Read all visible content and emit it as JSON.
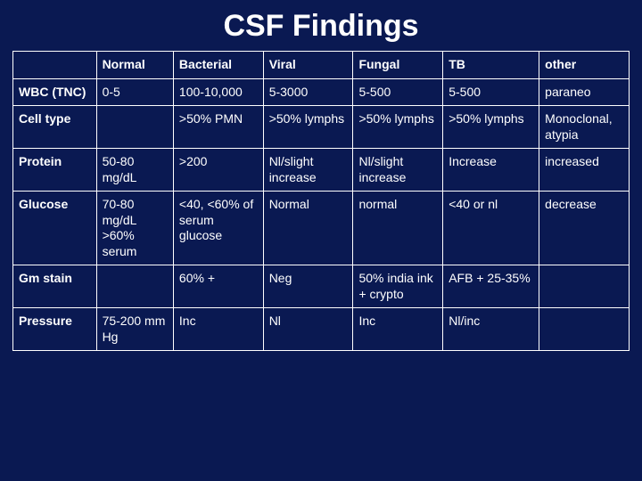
{
  "title": "CSF Findings",
  "columns": [
    "",
    "Normal",
    "Bacterial",
    "Viral",
    "Fungal",
    "TB",
    "other"
  ],
  "rows": [
    {
      "head": "WBC (TNC)",
      "cells": [
        "0-5",
        "100-10,000",
        "5-3000",
        "5-500",
        "5-500",
        "paraneo"
      ]
    },
    {
      "head": "Cell type",
      "cells": [
        "",
        ">50% PMN",
        ">50% lymphs",
        ">50% lymphs",
        ">50% lymphs",
        "Monoclonal, atypia"
      ]
    },
    {
      "head": "Protein",
      "cells": [
        "50-80 mg/dL",
        ">200",
        "Nl/slight increase",
        "Nl/slight increase",
        "Increase",
        "increased"
      ]
    },
    {
      "head": "Glucose",
      "cells": [
        "70-80 mg/dL >60% serum",
        "<40, <60% of serum glucose",
        "Normal",
        "normal",
        "<40 or nl",
        "decrease"
      ]
    },
    {
      "head": "Gm stain",
      "cells": [
        "",
        "60% +",
        "Neg",
        "50% india ink + crypto",
        "AFB + 25-35%",
        ""
      ]
    },
    {
      "head": "Pressure",
      "cells": [
        "75-200 mm Hg",
        "Inc",
        "Nl",
        "Inc",
        "Nl/inc",
        ""
      ]
    }
  ],
  "style": {
    "background_color": "#0a1952",
    "title_color": "#ffffff",
    "title_fontsize": 34,
    "cell_fontsize": 14,
    "border_color": "#ffffff",
    "text_color": "#ffffff",
    "col_widths_pct": [
      13,
      12,
      14,
      14,
      14,
      15,
      14
    ]
  }
}
